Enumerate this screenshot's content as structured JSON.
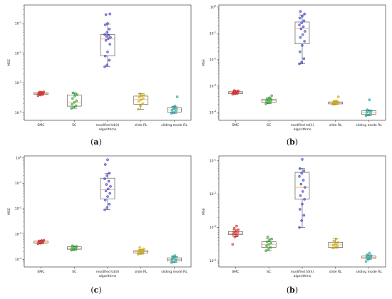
{
  "chart_data": [
    {
      "type": "box",
      "panel_label": {
        "open": "(",
        "letter": "a",
        "close": ")"
      },
      "xlabel": "algorithms",
      "ylabel": "MSE",
      "yscale": "log",
      "ylim": [
        5.5e-05,
        0.42
      ],
      "yticks": [
        {
          "value": 0.0001,
          "base": "10",
          "exp": "-4"
        },
        {
          "value": 0.001,
          "base": "10",
          "exp": "-3"
        },
        {
          "value": 0.01,
          "base": "10",
          "exp": "-2"
        },
        {
          "value": 0.1,
          "base": "10",
          "exp": "-1"
        }
      ],
      "categories": [
        "SMC",
        "SC",
        "modified td(λ)",
        "slide RL",
        "sliding mode RL"
      ],
      "series": [
        {
          "color": "#d62728",
          "box": {
            "whislo": 0.00038,
            "q1": 0.00041,
            "med": 0.00044,
            "q3": 0.00047,
            "whishi": 0.0005
          },
          "points": [
            0.00037,
            0.00039,
            0.00041,
            0.00043,
            0.00044,
            0.00045,
            0.00046,
            0.00048,
            0.0005,
            0.00049
          ]
        },
        {
          "color": "#2ca02c",
          "box": {
            "whislo": 0.00014,
            "q1": 0.000165,
            "med": 0.00022,
            "q3": 0.00039,
            "whishi": 0.00046
          },
          "points": [
            0.00014,
            0.00015,
            0.00017,
            0.00019,
            0.00022,
            0.00025,
            0.0003,
            0.00036,
            0.0004,
            0.00046,
            0.00043
          ]
        },
        {
          "color": "#3b3bc9",
          "box": {
            "whislo": 0.0036,
            "q1": 0.0082,
            "med": 0.03,
            "q3": 0.042,
            "whishi": 0.095
          },
          "points": [
            0.0035,
            0.004,
            0.0058,
            0.008,
            0.011,
            0.02,
            0.027,
            0.031,
            0.034,
            0.037,
            0.04,
            0.043,
            0.05,
            0.065,
            0.09,
            0.1,
            0.21,
            0.2
          ]
        },
        {
          "color": "#c9a800",
          "box": {
            "whislo": 0.00013,
            "q1": 0.00019,
            "med": 0.00028,
            "q3": 0.00036,
            "whishi": 0.00043
          },
          "points": [
            0.00013,
            0.00017,
            0.0002,
            0.00024,
            0.00027,
            0.0003,
            0.00033,
            0.00037,
            0.0004,
            0.00043
          ]
        },
        {
          "color": "#17a2a2",
          "box": {
            "whislo": 9.5e-05,
            "q1": 0.000105,
            "med": 0.000125,
            "q3": 0.000145,
            "whishi": 0.000165
          },
          "points": [
            9.5e-05,
            0.0001,
            0.00011,
            0.00012,
            0.00013,
            0.00014,
            0.00015,
            0.000165,
            0.00034
          ]
        }
      ]
    },
    {
      "type": "box",
      "panel_label": {
        "open": "(",
        "letter": "b",
        "close": ")"
      },
      "xlabel": "algorithms",
      "ylabel": "MSE",
      "yscale": "log",
      "ylim": [
        5e-05,
        1.2
      ],
      "yticks": [
        {
          "value": 0.0001,
          "base": "10",
          "exp": "-4"
        },
        {
          "value": 0.001,
          "base": "10",
          "exp": "-3"
        },
        {
          "value": 0.01,
          "base": "10",
          "exp": "-2"
        },
        {
          "value": 0.1,
          "base": "10",
          "exp": "-1"
        },
        {
          "value": 1,
          "base": "10",
          "exp": "0"
        }
      ],
      "categories": [
        "SMC",
        "SC",
        "modified td(λ)",
        "slide RL",
        "sliding mode RL"
      ],
      "series": [
        {
          "color": "#d62728",
          "box": {
            "whislo": 0.00049,
            "q1": 0.00052,
            "med": 0.00057,
            "q3": 0.00061,
            "whishi": 0.00066
          },
          "points": [
            0.00049,
            0.00051,
            0.00053,
            0.00055,
            0.00057,
            0.00059,
            0.00061,
            0.00063,
            0.00066,
            0.00068
          ]
        },
        {
          "color": "#2ca02c",
          "box": {
            "whislo": 0.00022,
            "q1": 0.00024,
            "med": 0.00028,
            "q3": 0.00032,
            "whishi": 0.00036
          },
          "points": [
            0.00021,
            0.00023,
            0.00025,
            0.00027,
            0.00029,
            0.00031,
            0.00033,
            0.00036,
            0.00043
          ]
        },
        {
          "color": "#3b3bc9",
          "box": {
            "whislo": 0.007,
            "q1": 0.04,
            "med": 0.15,
            "q3": 0.27,
            "whishi": 0.5
          },
          "points": [
            0.007,
            0.008,
            0.011,
            0.02,
            0.035,
            0.05,
            0.07,
            0.09,
            0.12,
            0.15,
            0.18,
            0.21,
            0.25,
            0.3,
            0.38,
            0.45,
            0.55,
            0.68
          ]
        },
        {
          "color": "#c9a800",
          "box": {
            "whislo": 0.0002,
            "q1": 0.00021,
            "med": 0.00023,
            "q3": 0.00025,
            "whishi": 0.00027
          },
          "points": [
            0.0002,
            0.00021,
            0.00022,
            0.00023,
            0.00024,
            0.00025,
            0.00026,
            0.00027,
            0.00039
          ]
        },
        {
          "color": "#17a2a2",
          "box": {
            "whislo": 7.5e-05,
            "q1": 8.5e-05,
            "med": 0.0001,
            "q3": 0.000115,
            "whishi": 0.000125
          },
          "points": [
            7.5e-05,
            8e-05,
            9e-05,
            0.0001,
            0.00011,
            0.000115,
            0.000125,
            0.0003
          ]
        }
      ]
    },
    {
      "type": "box",
      "panel_label": {
        "open": "(",
        "letter": "c",
        "close": ")"
      },
      "xlabel": "algorithms",
      "ylabel": "MSE",
      "yscale": "log",
      "ylim": [
        5e-05,
        1.2
      ],
      "yticks": [
        {
          "value": 0.0001,
          "base": "10",
          "exp": "-4"
        },
        {
          "value": 0.001,
          "base": "10",
          "exp": "-3"
        },
        {
          "value": 0.01,
          "base": "10",
          "exp": "-2"
        },
        {
          "value": 0.1,
          "base": "10",
          "exp": "-1"
        },
        {
          "value": 1,
          "base": "10",
          "exp": "0"
        }
      ],
      "categories": [
        "SMC",
        "SC",
        "modified td(λ)",
        "slide RL",
        "sliding mode RL"
      ],
      "series": [
        {
          "color": "#d62728",
          "box": {
            "whislo": 0.00041,
            "q1": 0.00044,
            "med": 0.00048,
            "q3": 0.00052,
            "whishi": 0.00057
          },
          "points": [
            0.00041,
            0.00043,
            0.00045,
            0.00047,
            0.00049,
            0.00051,
            0.00053,
            0.00055,
            0.00057
          ]
        },
        {
          "color": "#2ca02c",
          "box": {
            "whislo": 0.00023,
            "q1": 0.00025,
            "med": 0.00028,
            "q3": 0.00031,
            "whishi": 0.00034
          },
          "points": [
            0.00023,
            0.00024,
            0.00026,
            0.00028,
            0.0003,
            0.00032,
            0.00034
          ]
        },
        {
          "color": "#3b3bc9",
          "box": {
            "whislo": 0.009,
            "q1": 0.024,
            "med": 0.055,
            "q3": 0.16,
            "whishi": 0.25
          },
          "points": [
            0.009,
            0.011,
            0.015,
            0.022,
            0.03,
            0.04,
            0.05,
            0.06,
            0.075,
            0.09,
            0.12,
            0.15,
            0.2,
            0.25,
            0.55,
            0.85
          ]
        },
        {
          "color": "#c9a800",
          "box": {
            "whislo": 0.00016,
            "q1": 0.00018,
            "med": 0.0002,
            "q3": 0.00022,
            "whishi": 0.00024
          },
          "points": [
            0.00016,
            0.00017,
            0.00018,
            0.00019,
            0.0002,
            0.00021,
            0.00022,
            0.00023,
            0.00026,
            0.00029
          ]
        },
        {
          "color": "#17a2a2",
          "box": {
            "whislo": 7.5e-05,
            "q1": 8.5e-05,
            "med": 0.0001,
            "q3": 0.000115,
            "whishi": 0.00013
          },
          "points": [
            7.5e-05,
            8e-05,
            9e-05,
            0.0001,
            0.00011,
            0.00012,
            0.00013,
            0.00014
          ]
        }
      ]
    },
    {
      "type": "box",
      "panel_label": {
        "open": "(",
        "letter": "b",
        "close": ")"
      },
      "xlabel": "algorithms",
      "ylabel": "MSE",
      "yscale": "log",
      "ylim": [
        6.5e-05,
        0.14
      ],
      "yticks": [
        {
          "value": 0.0001,
          "base": "10",
          "exp": "-4"
        },
        {
          "value": 0.001,
          "base": "10",
          "exp": "-3"
        },
        {
          "value": 0.01,
          "base": "10",
          "exp": "-2"
        },
        {
          "value": 0.1,
          "base": "10",
          "exp": "-1"
        }
      ],
      "categories": [
        "SMC",
        "SC",
        "modified td(λ)",
        "slide RL",
        "sliding mode RL"
      ],
      "series": [
        {
          "color": "#d62728",
          "box": {
            "whislo": 0.00052,
            "q1": 0.00061,
            "med": 0.00068,
            "q3": 0.00075,
            "whishi": 0.00085
          },
          "points": [
            0.00031,
            0.00052,
            0.00057,
            0.00062,
            0.00066,
            0.0007,
            0.00074,
            0.00079,
            0.00085,
            0.00095,
            0.0011
          ]
        },
        {
          "color": "#2ca02c",
          "box": {
            "whislo": 0.0002,
            "q1": 0.00025,
            "med": 0.00031,
            "q3": 0.00037,
            "whishi": 0.00045
          },
          "points": [
            0.0002,
            0.00022,
            0.00025,
            0.00028,
            0.00031,
            0.00034,
            0.00037,
            0.00041,
            0.00045,
            0.00052
          ]
        },
        {
          "color": "#3b3bc9",
          "box": {
            "whislo": 0.001,
            "q1": 0.007,
            "med": 0.016,
            "q3": 0.045,
            "whishi": 0.06
          },
          "points": [
            0.001,
            0.0016,
            0.0023,
            0.0035,
            0.005,
            0.007,
            0.009,
            0.012,
            0.016,
            0.02,
            0.026,
            0.034,
            0.042,
            0.05,
            0.058,
            0.11
          ]
        },
        {
          "color": "#c9a800",
          "box": {
            "whislo": 0.00024,
            "q1": 0.00025,
            "med": 0.0003,
            "q3": 0.00036,
            "whishi": 0.00045
          },
          "points": [
            0.00024,
            0.00026,
            0.00028,
            0.0003,
            0.00032,
            0.00035,
            0.00039,
            0.00045
          ]
        },
        {
          "color": "#17a2a2",
          "box": {
            "whislo": 0.00011,
            "q1": 0.000118,
            "med": 0.000128,
            "q3": 0.000138,
            "whishi": 0.00015
          },
          "points": [
            9.5e-05,
            0.00011,
            0.000118,
            0.000125,
            0.000132,
            0.00014,
            0.00015,
            0.00017
          ]
        }
      ]
    }
  ]
}
